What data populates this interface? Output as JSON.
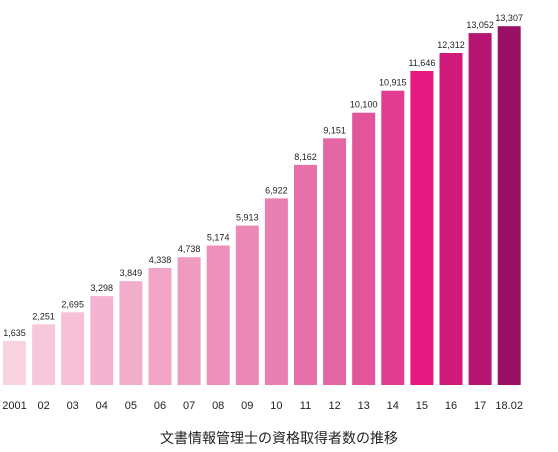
{
  "chart_data": {
    "type": "bar",
    "title": "文書情報管理士の資格取得者数の推移",
    "categories": [
      "2001",
      "02",
      "03",
      "04",
      "05",
      "06",
      "07",
      "08",
      "09",
      "10",
      "11",
      "12",
      "13",
      "14",
      "15",
      "16",
      "17",
      "18.02"
    ],
    "value_labels": [
      "1,635",
      "2,251",
      "2,695",
      "3,298",
      "3,849",
      "4,338",
      "4,738",
      "5,174",
      "5,913",
      "6,922",
      "8,162",
      "9,151",
      "10,100",
      "10,915",
      "11,646",
      "12,312",
      "13,052",
      "13,307"
    ],
    "values": [
      1635,
      2251,
      2695,
      3298,
      3849,
      4338,
      4738,
      5174,
      5913,
      6922,
      8162,
      9151,
      10100,
      10915,
      11646,
      12312,
      13052,
      13307
    ],
    "colors": [
      "#f9d3e2",
      "#f7c8dc",
      "#f6c0d7",
      "#f4b4cf",
      "#f2adcb",
      "#f0a4c6",
      "#ef9bc0",
      "#ec8fb9",
      "#eb88b5",
      "#e97fb0",
      "#e770a8",
      "#e467a3",
      "#e2559b",
      "#e03d90",
      "#e5197f",
      "#cf1a79",
      "#b51673",
      "#9c0f66"
    ],
    "ylim": [
      0,
      13500
    ],
    "grid": false,
    "legend": "none"
  }
}
